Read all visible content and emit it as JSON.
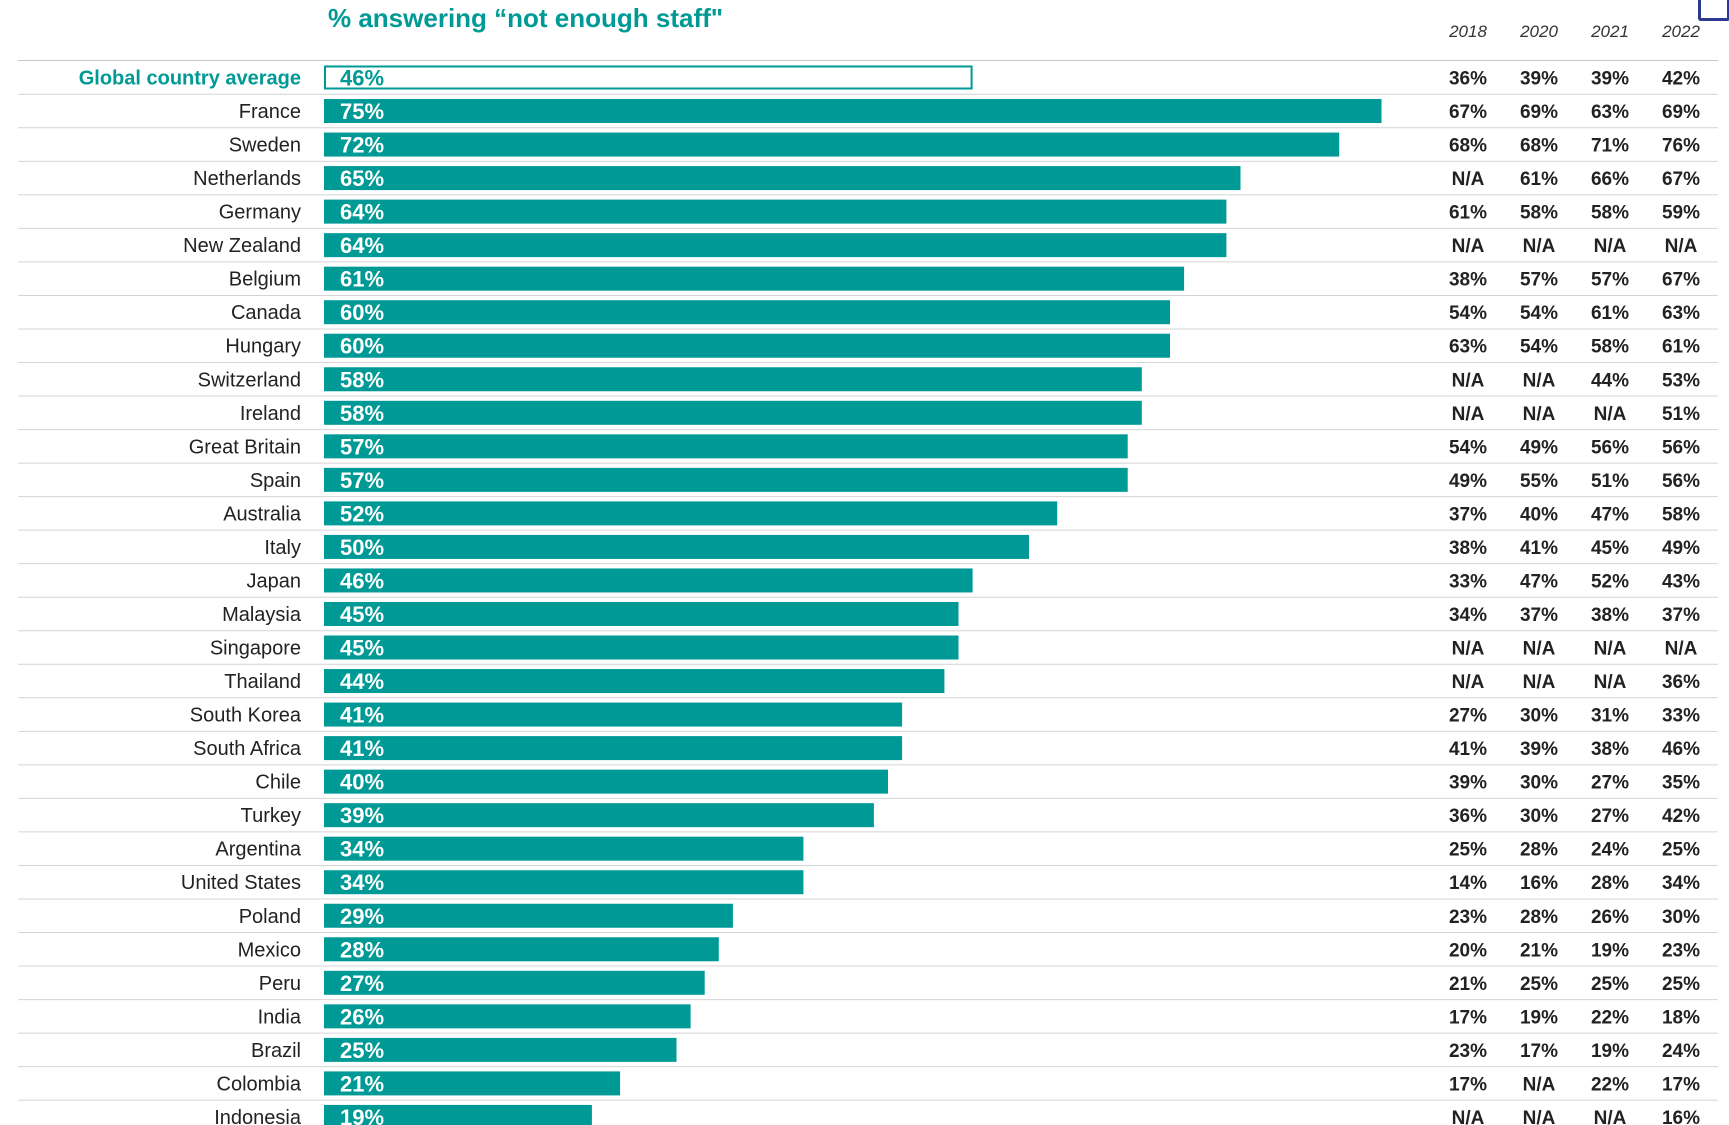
{
  "chart_data": {
    "type": "bar",
    "title": "% answering “not enough staff\"",
    "orientation": "horizontal",
    "xlim": [
      0,
      100
    ],
    "grid": false,
    "legend": "none",
    "bar_color": "#009a96",
    "highlight_color": "#009a96",
    "years": [
      "2018",
      "2020",
      "2021",
      "2022"
    ],
    "rows": [
      {
        "label": "Global country average",
        "value": 46,
        "value_label": "46%",
        "history": [
          "36%",
          "39%",
          "39%",
          "42%"
        ],
        "highlight": true
      },
      {
        "label": "France",
        "value": 75,
        "value_label": "75%",
        "history": [
          "67%",
          "69%",
          "63%",
          "69%"
        ]
      },
      {
        "label": "Sweden",
        "value": 72,
        "value_label": "72%",
        "history": [
          "68%",
          "68%",
          "71%",
          "76%"
        ]
      },
      {
        "label": "Netherlands",
        "value": 65,
        "value_label": "65%",
        "history": [
          "N/A",
          "61%",
          "66%",
          "67%"
        ]
      },
      {
        "label": "Germany",
        "value": 64,
        "value_label": "64%",
        "history": [
          "61%",
          "58%",
          "58%",
          "59%"
        ]
      },
      {
        "label": "New Zealand",
        "value": 64,
        "value_label": "64%",
        "history": [
          "N/A",
          "N/A",
          "N/A",
          "N/A"
        ]
      },
      {
        "label": "Belgium",
        "value": 61,
        "value_label": "61%",
        "history": [
          "38%",
          "57%",
          "57%",
          "67%"
        ]
      },
      {
        "label": "Canada",
        "value": 60,
        "value_label": "60%",
        "history": [
          "54%",
          "54%",
          "61%",
          "63%"
        ]
      },
      {
        "label": "Hungary",
        "value": 60,
        "value_label": "60%",
        "history": [
          "63%",
          "54%",
          "58%",
          "61%"
        ]
      },
      {
        "label": "Switzerland",
        "value": 58,
        "value_label": "58%",
        "history": [
          "N/A",
          "N/A",
          "44%",
          "53%"
        ]
      },
      {
        "label": "Ireland",
        "value": 58,
        "value_label": "58%",
        "history": [
          "N/A",
          "N/A",
          "N/A",
          "51%"
        ]
      },
      {
        "label": "Great Britain",
        "value": 57,
        "value_label": "57%",
        "history": [
          "54%",
          "49%",
          "56%",
          "56%"
        ]
      },
      {
        "label": "Spain",
        "value": 57,
        "value_label": "57%",
        "history": [
          "49%",
          "55%",
          "51%",
          "56%"
        ]
      },
      {
        "label": "Australia",
        "value": 52,
        "value_label": "52%",
        "history": [
          "37%",
          "40%",
          "47%",
          "58%"
        ]
      },
      {
        "label": "Italy",
        "value": 50,
        "value_label": "50%",
        "history": [
          "38%",
          "41%",
          "45%",
          "49%"
        ]
      },
      {
        "label": "Japan",
        "value": 46,
        "value_label": "46%",
        "history": [
          "33%",
          "47%",
          "52%",
          "43%"
        ]
      },
      {
        "label": "Malaysia",
        "value": 45,
        "value_label": "45%",
        "history": [
          "34%",
          "37%",
          "38%",
          "37%"
        ]
      },
      {
        "label": "Singapore",
        "value": 45,
        "value_label": "45%",
        "history": [
          "N/A",
          "N/A",
          "N/A",
          "N/A"
        ]
      },
      {
        "label": "Thailand",
        "value": 44,
        "value_label": "44%",
        "history": [
          "N/A",
          "N/A",
          "N/A",
          "36%"
        ]
      },
      {
        "label": "South Korea",
        "value": 41,
        "value_label": "41%",
        "history": [
          "27%",
          "30%",
          "31%",
          "33%"
        ]
      },
      {
        "label": "South Africa",
        "value": 41,
        "value_label": "41%",
        "history": [
          "41%",
          "39%",
          "38%",
          "46%"
        ]
      },
      {
        "label": "Chile",
        "value": 40,
        "value_label": "40%",
        "history": [
          "39%",
          "30%",
          "27%",
          "35%"
        ]
      },
      {
        "label": "Turkey",
        "value": 39,
        "value_label": "39%",
        "history": [
          "36%",
          "30%",
          "27%",
          "42%"
        ]
      },
      {
        "label": "Argentina",
        "value": 34,
        "value_label": "34%",
        "history": [
          "25%",
          "28%",
          "24%",
          "25%"
        ]
      },
      {
        "label": "United States",
        "value": 34,
        "value_label": "34%",
        "history": [
          "14%",
          "16%",
          "28%",
          "34%"
        ]
      },
      {
        "label": "Poland",
        "value": 29,
        "value_label": "29%",
        "history": [
          "23%",
          "28%",
          "26%",
          "30%"
        ]
      },
      {
        "label": "Mexico",
        "value": 28,
        "value_label": "28%",
        "history": [
          "20%",
          "21%",
          "19%",
          "23%"
        ]
      },
      {
        "label": "Peru",
        "value": 27,
        "value_label": "27%",
        "history": [
          "21%",
          "25%",
          "25%",
          "25%"
        ]
      },
      {
        "label": "India",
        "value": 26,
        "value_label": "26%",
        "history": [
          "17%",
          "19%",
          "22%",
          "18%"
        ]
      },
      {
        "label": "Brazil",
        "value": 25,
        "value_label": "25%",
        "history": [
          "23%",
          "17%",
          "19%",
          "24%"
        ]
      },
      {
        "label": "Colombia",
        "value": 21,
        "value_label": "21%",
        "history": [
          "17%",
          "N/A",
          "22%",
          "17%"
        ]
      },
      {
        "label": "Indonesia",
        "value": 19,
        "value_label": "19%",
        "history": [
          "N/A",
          "N/A",
          "N/A",
          "16%"
        ]
      }
    ]
  }
}
